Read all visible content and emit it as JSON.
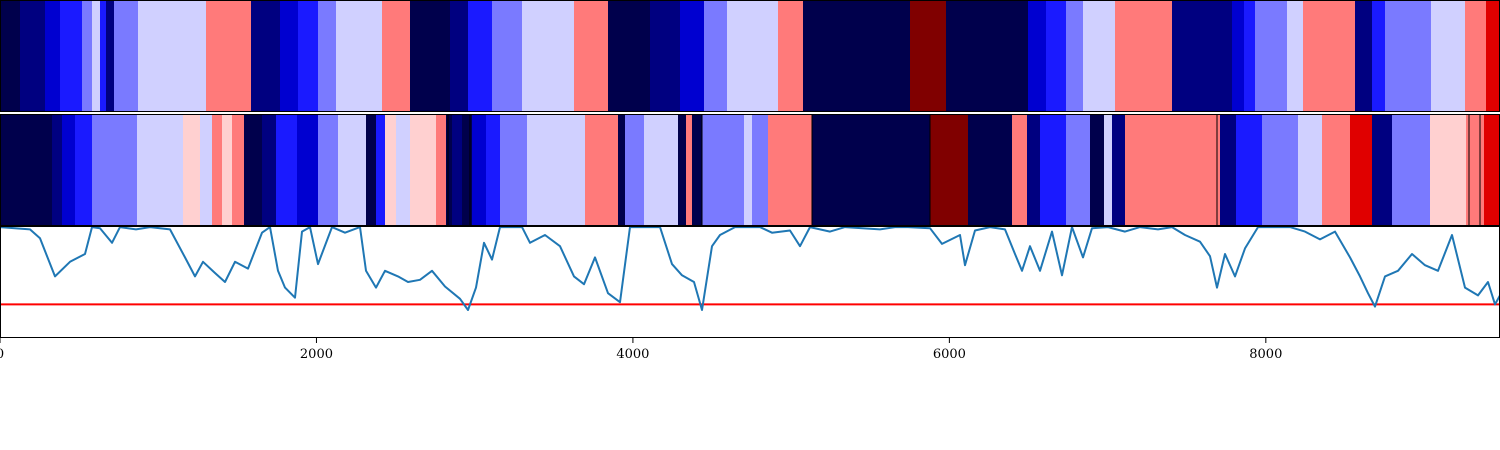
{
  "chart_data": {
    "type": "heatmap",
    "x_range": [
      0,
      9480
    ],
    "x_ticks": [
      {
        "value": 0,
        "label": "0"
      },
      {
        "value": 2000,
        "label": "2000"
      },
      {
        "value": 4000,
        "label": "4000"
      },
      {
        "value": 6000,
        "label": "6000"
      },
      {
        "value": 8000,
        "label": "8000"
      }
    ],
    "colormap": "bwr",
    "colors": {
      "c0": "#00004c",
      "c1": "#000080",
      "c2": "#0000d0",
      "c3": "#1a1aff",
      "c4": "#7a7aff",
      "c5": "#d0d0ff",
      "c6": "#ffd0d0",
      "c7": "#ff7a7a",
      "c8": "#e00000",
      "c9": "#800000",
      "line": "#1f77b4",
      "threshold": "#ff0000",
      "frame": "#000000"
    },
    "strip_top": [
      [
        0,
        20,
        "c0"
      ],
      [
        20,
        45,
        "c1"
      ],
      [
        45,
        60,
        "c2"
      ],
      [
        60,
        82,
        "c3"
      ],
      [
        82,
        92,
        "c4"
      ],
      [
        92,
        100,
        "c5"
      ],
      [
        100,
        106,
        "c3"
      ],
      [
        106,
        114,
        "c1"
      ],
      [
        114,
        138,
        "c4"
      ],
      [
        138,
        206,
        "c5"
      ],
      [
        206,
        251,
        "c7"
      ],
      [
        251,
        280,
        "c1"
      ],
      [
        280,
        298,
        "c2"
      ],
      [
        298,
        318,
        "c3"
      ],
      [
        318,
        336,
        "c4"
      ],
      [
        336,
        382,
        "c5"
      ],
      [
        382,
        410,
        "c7"
      ],
      [
        410,
        450,
        "c0"
      ],
      [
        450,
        468,
        "c1"
      ],
      [
        468,
        492,
        "c3"
      ],
      [
        492,
        522,
        "c4"
      ],
      [
        522,
        574,
        "c5"
      ],
      [
        574,
        608,
        "c7"
      ],
      [
        608,
        650,
        "c0"
      ],
      [
        650,
        680,
        "c1"
      ],
      [
        680,
        704,
        "c2"
      ],
      [
        704,
        727,
        "c4"
      ],
      [
        727,
        778,
        "c5"
      ],
      [
        778,
        803,
        "c7"
      ],
      [
        803,
        910,
        "c0"
      ],
      [
        910,
        946,
        "c9"
      ],
      [
        946,
        1028,
        "c0"
      ],
      [
        1028,
        1046,
        "c2"
      ],
      [
        1046,
        1066,
        "c3"
      ],
      [
        1066,
        1083,
        "c4"
      ],
      [
        1083,
        1115,
        "c5"
      ],
      [
        1115,
        1172,
        "c7"
      ],
      [
        1172,
        1232,
        "c1"
      ],
      [
        1232,
        1244,
        "c2"
      ],
      [
        1244,
        1255,
        "c3"
      ],
      [
        1255,
        1287,
        "c4"
      ],
      [
        1287,
        1303,
        "c5"
      ],
      [
        1303,
        1355,
        "c7"
      ],
      [
        1355,
        1372,
        "c1"
      ],
      [
        1372,
        1385,
        "c3"
      ],
      [
        1385,
        1431,
        "c4"
      ],
      [
        1431,
        1465,
        "c5"
      ],
      [
        1465,
        1486,
        "c7"
      ],
      [
        1486,
        1500,
        "c8"
      ]
    ],
    "strip_bottom": [
      [
        0,
        52,
        "c0"
      ],
      [
        52,
        62,
        "c1"
      ],
      [
        62,
        75,
        "c2"
      ],
      [
        75,
        92,
        "c3"
      ],
      [
        92,
        137,
        "c4"
      ],
      [
        137,
        183,
        "c5"
      ],
      [
        183,
        200,
        "c6"
      ],
      [
        200,
        212,
        "c5"
      ],
      [
        212,
        222,
        "c7"
      ],
      [
        222,
        232,
        "c6"
      ],
      [
        232,
        244,
        "c7"
      ],
      [
        244,
        262,
        "c0"
      ],
      [
        262,
        276,
        "c1"
      ],
      [
        276,
        297,
        "c3"
      ],
      [
        297,
        318,
        "c2"
      ],
      [
        318,
        338,
        "c4"
      ],
      [
        338,
        366,
        "c5"
      ],
      [
        366,
        376,
        "c0"
      ],
      [
        376,
        385,
        "c3"
      ],
      [
        385,
        396,
        "c6"
      ],
      [
        396,
        410,
        "c5"
      ],
      [
        410,
        436,
        "c6"
      ],
      [
        436,
        446,
        "c7"
      ],
      [
        446,
        452,
        "c0"
      ],
      [
        452,
        462,
        "c1"
      ],
      [
        462,
        472,
        "c0"
      ],
      [
        472,
        486,
        "c2"
      ],
      [
        486,
        500,
        "c3"
      ],
      [
        500,
        527,
        "c4"
      ],
      [
        527,
        585,
        "c5"
      ],
      [
        585,
        618,
        "c7"
      ],
      [
        618,
        625,
        "c0"
      ],
      [
        625,
        644,
        "c4"
      ],
      [
        644,
        678,
        "c5"
      ],
      [
        678,
        686,
        "c0"
      ],
      [
        686,
        692,
        "c7"
      ],
      [
        692,
        702,
        "c0"
      ],
      [
        702,
        744,
        "c4"
      ],
      [
        744,
        752,
        "c5"
      ],
      [
        752,
        768,
        "c4"
      ],
      [
        768,
        812,
        "c7"
      ],
      [
        812,
        930,
        "c0"
      ],
      [
        930,
        968,
        "c9"
      ],
      [
        968,
        1012,
        "c0"
      ],
      [
        1012,
        1027,
        "c7"
      ],
      [
        1027,
        1040,
        "c1"
      ],
      [
        1040,
        1066,
        "c3"
      ],
      [
        1066,
        1090,
        "c4"
      ],
      [
        1090,
        1104,
        "c0"
      ],
      [
        1104,
        1112,
        "c5"
      ],
      [
        1112,
        1125,
        "c1"
      ],
      [
        1125,
        1220,
        "c7"
      ],
      [
        1220,
        1236,
        "c1"
      ],
      [
        1236,
        1262,
        "c3"
      ],
      [
        1262,
        1298,
        "c4"
      ],
      [
        1298,
        1322,
        "c5"
      ],
      [
        1322,
        1350,
        "c7"
      ],
      [
        1350,
        1372,
        "c8"
      ],
      [
        1372,
        1392,
        "c1"
      ],
      [
        1392,
        1430,
        "c4"
      ],
      [
        1430,
        1466,
        "c6"
      ],
      [
        1466,
        1484,
        "c7"
      ],
      [
        1484,
        1500,
        "c8"
      ]
    ],
    "strip_bottom_lines": [
      448,
      470,
      702,
      812,
      930,
      1217,
      1469,
      1480
    ],
    "series": [
      {
        "threshold_y": 0.3,
        "ylim": [
          0,
          1
        ],
        "points": [
          [
            0,
            0.99
          ],
          [
            30,
            0.97
          ],
          [
            40,
            0.89
          ],
          [
            55,
            0.55
          ],
          [
            70,
            0.68
          ],
          [
            85,
            0.75
          ],
          [
            92,
            0.99
          ],
          [
            100,
            0.98
          ],
          [
            112,
            0.85
          ],
          [
            120,
            0.99
          ],
          [
            136,
            0.97
          ],
          [
            150,
            0.99
          ],
          [
            170,
            0.97
          ],
          [
            185,
            0.72
          ],
          [
            195,
            0.55
          ],
          [
            203,
            0.68
          ],
          [
            215,
            0.58
          ],
          [
            225,
            0.5
          ],
          [
            235,
            0.68
          ],
          [
            248,
            0.62
          ],
          [
            262,
            0.94
          ],
          [
            270,
            0.99
          ],
          [
            278,
            0.6
          ],
          [
            285,
            0.45
          ],
          [
            295,
            0.36
          ],
          [
            302,
            0.95
          ],
          [
            310,
            0.99
          ],
          [
            318,
            0.66
          ],
          [
            332,
            0.99
          ],
          [
            345,
            0.94
          ],
          [
            360,
            0.99
          ],
          [
            366,
            0.6
          ],
          [
            376,
            0.45
          ],
          [
            385,
            0.6
          ],
          [
            398,
            0.55
          ],
          [
            408,
            0.5
          ],
          [
            420,
            0.52
          ],
          [
            432,
            0.6
          ],
          [
            445,
            0.46
          ],
          [
            460,
            0.35
          ],
          [
            468,
            0.25
          ],
          [
            476,
            0.45
          ],
          [
            484,
            0.85
          ],
          [
            492,
            0.7
          ],
          [
            500,
            0.99
          ],
          [
            522,
            0.99
          ],
          [
            530,
            0.85
          ],
          [
            545,
            0.92
          ],
          [
            560,
            0.82
          ],
          [
            574,
            0.55
          ],
          [
            584,
            0.48
          ],
          [
            595,
            0.72
          ],
          [
            608,
            0.4
          ],
          [
            620,
            0.32
          ],
          [
            630,
            0.99
          ],
          [
            648,
            0.99
          ],
          [
            660,
            0.99
          ],
          [
            672,
            0.66
          ],
          [
            682,
            0.56
          ],
          [
            694,
            0.5
          ],
          [
            702,
            0.25
          ],
          [
            712,
            0.82
          ],
          [
            720,
            0.92
          ],
          [
            735,
            0.99
          ],
          [
            760,
            0.99
          ],
          [
            772,
            0.94
          ],
          [
            790,
            0.96
          ],
          [
            800,
            0.82
          ],
          [
            810,
            0.99
          ],
          [
            830,
            0.95
          ],
          [
            845,
            0.99
          ],
          [
            880,
            0.97
          ],
          [
            895,
            0.99
          ],
          [
            908,
            0.99
          ],
          [
            930,
            0.98
          ],
          [
            942,
            0.84
          ],
          [
            960,
            0.92
          ],
          [
            965,
            0.65
          ],
          [
            975,
            0.96
          ],
          [
            990,
            0.99
          ],
          [
            1005,
            0.97
          ],
          [
            1015,
            0.75
          ],
          [
            1022,
            0.6
          ],
          [
            1030,
            0.82
          ],
          [
            1040,
            0.6
          ],
          [
            1052,
            0.95
          ],
          [
            1062,
            0.56
          ],
          [
            1072,
            0.99
          ],
          [
            1083,
            0.72
          ],
          [
            1092,
            0.98
          ],
          [
            1108,
            0.99
          ],
          [
            1125,
            0.95
          ],
          [
            1140,
            0.99
          ],
          [
            1158,
            0.97
          ],
          [
            1172,
            0.99
          ],
          [
            1185,
            0.92
          ],
          [
            1200,
            0.86
          ],
          [
            1210,
            0.73
          ],
          [
            1217,
            0.45
          ],
          [
            1225,
            0.75
          ],
          [
            1235,
            0.55
          ],
          [
            1245,
            0.8
          ],
          [
            1258,
            0.99
          ],
          [
            1270,
            0.99
          ],
          [
            1290,
            0.99
          ],
          [
            1305,
            0.95
          ],
          [
            1320,
            0.88
          ],
          [
            1335,
            0.95
          ],
          [
            1350,
            0.72
          ],
          [
            1360,
            0.55
          ],
          [
            1368,
            0.4
          ],
          [
            1375,
            0.28
          ],
          [
            1385,
            0.55
          ],
          [
            1398,
            0.6
          ],
          [
            1412,
            0.75
          ],
          [
            1425,
            0.65
          ],
          [
            1438,
            0.6
          ],
          [
            1452,
            0.92
          ],
          [
            1465,
            0.45
          ],
          [
            1478,
            0.38
          ],
          [
            1488,
            0.5
          ],
          [
            1495,
            0.3
          ],
          [
            1500,
            0.38
          ]
        ]
      }
    ]
  }
}
